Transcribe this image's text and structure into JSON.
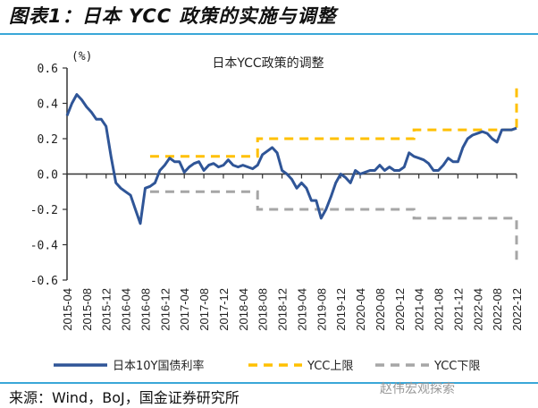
{
  "figure_title": "图表1：日本 YCC 政策的实施与调整",
  "source": "来源：Wind，BoJ，国金证券研究所",
  "watermark": "赵伟宏观探索",
  "chart_data": {
    "type": "line",
    "title": "日本YCC政策的调整",
    "ylabel": "(%)",
    "ylim": [
      -0.6,
      0.6
    ],
    "yticks": [
      "0.6",
      "0.4",
      "0.2",
      "0.0",
      "-0.2",
      "-0.4",
      "-0.6"
    ],
    "xlim": [
      "2015-04",
      "2022-12"
    ],
    "xticks": [
      "2015-04",
      "2015-08",
      "2015-12",
      "2016-04",
      "2016-08",
      "2016-12",
      "2017-04",
      "2017-08",
      "2017-12",
      "2018-04",
      "2018-08",
      "2018-12",
      "2019-04",
      "2019-08",
      "2019-12",
      "2020-04",
      "2020-08",
      "2020-12",
      "2021-04",
      "2021-08",
      "2021-12",
      "2022-04",
      "2022-08",
      "2022-12"
    ],
    "grid": false,
    "legend_placement": "bottom",
    "colors": {
      "yield": "#2f5597",
      "upper": "#ffc000",
      "lower": "#a6a6a6",
      "rule": "#3aa7d8"
    },
    "series": [
      {
        "name": "日本10Y国债利率",
        "style": "solid",
        "start": "2015-04",
        "frequency": "monthly",
        "values": [
          0.33,
          0.4,
          0.45,
          0.42,
          0.38,
          0.35,
          0.31,
          0.31,
          0.27,
          0.1,
          -0.05,
          -0.08,
          -0.1,
          -0.12,
          -0.2,
          -0.28,
          -0.08,
          -0.07,
          -0.05,
          0.02,
          0.05,
          0.09,
          0.07,
          0.07,
          0.01,
          0.04,
          0.06,
          0.07,
          0.02,
          0.05,
          0.06,
          0.04,
          0.05,
          0.08,
          0.05,
          0.04,
          0.05,
          0.04,
          0.03,
          0.05,
          0.11,
          0.13,
          0.15,
          0.12,
          0.02,
          0.0,
          -0.03,
          -0.08,
          -0.05,
          -0.08,
          -0.15,
          -0.15,
          -0.25,
          -0.2,
          -0.13,
          -0.05,
          0.0,
          -0.02,
          -0.05,
          0.02,
          0.0,
          0.01,
          0.02,
          0.02,
          0.05,
          0.02,
          0.04,
          0.02,
          0.02,
          0.04,
          0.12,
          0.1,
          0.09,
          0.08,
          0.06,
          0.02,
          0.02,
          0.05,
          0.09,
          0.07,
          0.07,
          0.15,
          0.2,
          0.22,
          0.23,
          0.24,
          0.23,
          0.2,
          0.18,
          0.25,
          0.25,
          0.25,
          0.26
        ]
      },
      {
        "name": "YCC上限",
        "style": "dashed",
        "steps": [
          [
            "2016-09",
            0.1
          ],
          [
            "2018-07",
            0.2
          ],
          [
            "2021-03",
            0.25
          ],
          [
            "2022-12",
            0.5
          ]
        ]
      },
      {
        "name": "YCC下限",
        "style": "dashed",
        "steps": [
          [
            "2016-09",
            -0.1
          ],
          [
            "2018-07",
            -0.2
          ],
          [
            "2021-03",
            -0.25
          ],
          [
            "2022-12",
            -0.5
          ]
        ]
      }
    ]
  }
}
